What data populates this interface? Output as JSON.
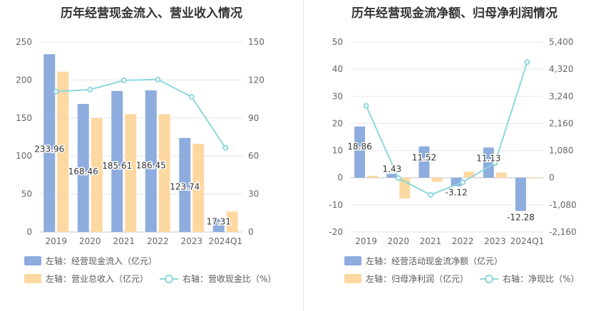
{
  "colors": {
    "blue": "#8eadde",
    "yellow": "#fdd8a0",
    "teal": "#8ed7de"
  },
  "chart_data": [
    {
      "type": "bar",
      "title": "历年经营现金流入、营业收入情况",
      "categories": [
        "2019",
        "2020",
        "2021",
        "2022",
        "2023",
        "2024Q1"
      ],
      "left_axis": {
        "ticks": [
          "0",
          "50",
          "100",
          "150",
          "200",
          "250"
        ],
        "ylim": [
          0,
          250
        ]
      },
      "right_axis": {
        "ticks": [
          "0",
          "30",
          "60",
          "90",
          "120",
          "150"
        ],
        "ylim": [
          0,
          150
        ]
      },
      "series": [
        {
          "name": "左轴：经营现金流入（亿元）",
          "type": "bar",
          "axis": "left",
          "values": [
            233.96,
            168.46,
            185.61,
            186.45,
            123.74,
            17.31
          ],
          "labels": [
            "233.96",
            "168.46",
            "185.61",
            "186.45",
            "123.74",
            "17.31"
          ]
        },
        {
          "name": "左轴：营业总收入（亿元）",
          "type": "bar",
          "axis": "left",
          "values": [
            211,
            150,
            155,
            155,
            116,
            27
          ]
        },
        {
          "name": "右轴：营收现金比（%）",
          "type": "line",
          "axis": "right",
          "values": [
            110.9,
            112.4,
            119.7,
            120.4,
            106.7,
            66.5
          ]
        }
      ]
    },
    {
      "type": "bar",
      "title": "历年经营现金流净额、归母净利润情况",
      "categories": [
        "2019",
        "2020",
        "2021",
        "2022",
        "2023",
        "2024Q1"
      ],
      "left_axis": {
        "ticks": [
          "-20",
          "-10",
          "0",
          "10",
          "20",
          "30",
          "40",
          "50"
        ],
        "ylim": [
          -20,
          50
        ]
      },
      "right_axis": {
        "ticks": [
          "-2,160",
          "-1,080",
          "0",
          "1,080",
          "2,160",
          "3,240",
          "4,320",
          "5,400"
        ],
        "ylim": [
          -2160,
          5400
        ]
      },
      "series": [
        {
          "name": "左轴：经营活动现金流净额（亿元）",
          "type": "bar",
          "axis": "left",
          "values": [
            18.86,
            1.43,
            11.52,
            -3.12,
            11.13,
            -12.28
          ],
          "labels": [
            "18.86",
            "1.43",
            "11.52",
            "-3.12",
            "11.13",
            "-12.28"
          ]
        },
        {
          "name": "左轴：归母净利润（亿元）",
          "type": "bar",
          "axis": "left",
          "values": [
            0.7,
            -7.6,
            -1.5,
            2.2,
            1.9,
            -0.2
          ]
        },
        {
          "name": "右轴：净现比（%）",
          "type": "line",
          "axis": "right",
          "values": [
            2860,
            -20,
            -680,
            -180,
            580,
            4600
          ]
        }
      ]
    }
  ]
}
